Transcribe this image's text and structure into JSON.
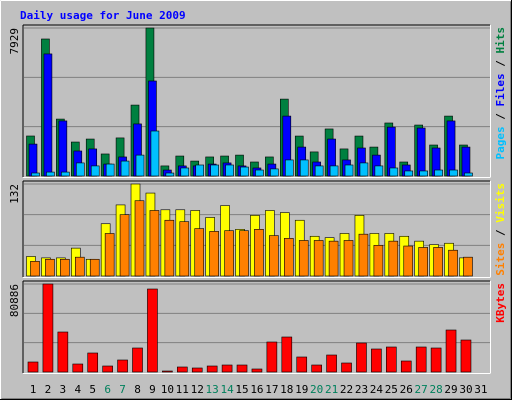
{
  "title": "Daily usage for June 2009",
  "chart_data": [
    {
      "type": "bar",
      "ylim": [
        0,
        7929
      ],
      "yticks": [
        7929
      ],
      "series": [
        {
          "name": "Hits",
          "color": "#008040",
          "values": [
            2143,
            7340,
            3050,
            1820,
            1980,
            1180,
            2040,
            3800,
            7929,
            540,
            1070,
            800,
            1020,
            1070,
            1120,
            750,
            1020,
            4120,
            2140,
            1290,
            2520,
            1450,
            2140,
            1550,
            2840,
            750,
            2730,
            1660,
            3210,
            1660,
            0
          ]
        },
        {
          "name": "Files",
          "color": "#0000ff",
          "values": [
            1710,
            6540,
            2950,
            1340,
            1450,
            640,
            1020,
            2790,
            5090,
            320,
            540,
            540,
            640,
            700,
            540,
            430,
            640,
            3210,
            1550,
            750,
            1980,
            860,
            1500,
            1120,
            2620,
            590,
            2570,
            1500,
            2950,
            1550,
            0
          ]
        },
        {
          "name": "Pages",
          "color": "#00c0ff",
          "values": [
            160,
            210,
            210,
            700,
            540,
            640,
            800,
            1120,
            2410,
            160,
            430,
            590,
            590,
            590,
            480,
            320,
            380,
            860,
            860,
            540,
            540,
            590,
            700,
            540,
            430,
            270,
            270,
            320,
            320,
            160,
            0
          ]
        }
      ]
    },
    {
      "type": "bar",
      "ylim": [
        0,
        132
      ],
      "yticks": [
        132
      ],
      "series": [
        {
          "name": "Visits",
          "color": "#ffff00",
          "values": [
            28,
            26,
            26,
            40,
            24,
            75,
            102,
            132,
            119,
            95,
            95,
            94,
            84,
            101,
            67,
            87,
            94,
            91,
            80,
            57,
            55,
            61,
            87,
            61,
            61,
            57,
            50,
            45,
            47,
            26,
            0
          ]
        },
        {
          "name": "Sites",
          "color": "#ff8000",
          "values": [
            21,
            24,
            24,
            27,
            24,
            61,
            88,
            108,
            94,
            80,
            78,
            68,
            64,
            65,
            65,
            67,
            58,
            54,
            51,
            51,
            50,
            51,
            60,
            44,
            50,
            43,
            41,
            41,
            37,
            27,
            0
          ]
        }
      ]
    },
    {
      "type": "bar",
      "ylim": [
        0,
        80886
      ],
      "yticks": [
        80886
      ],
      "categories": [
        "1",
        "2",
        "3",
        "4",
        "5",
        "6",
        "7",
        "8",
        "9",
        "10",
        "11",
        "12",
        "13",
        "14",
        "15",
        "16",
        "17",
        "18",
        "19",
        "20",
        "21",
        "22",
        "23",
        "24",
        "25",
        "26",
        "27",
        "28",
        "29",
        "30",
        "31"
      ],
      "category_colors": [
        "#000000",
        "#000000",
        "#000000",
        "#000000",
        "#000000",
        "#00805c",
        "#00805c",
        "#000000",
        "#000000",
        "#000000",
        "#000000",
        "#000000",
        "#00805c",
        "#00805c",
        "#000000",
        "#000000",
        "#000000",
        "#000000",
        "#000000",
        "#00805c",
        "#00805c",
        "#000000",
        "#000000",
        "#000000",
        "#000000",
        "#000000",
        "#00805c",
        "#00805c",
        "#000000",
        "#000000",
        "#000000"
      ],
      "series": [
        {
          "name": "KBytes",
          "color": "#ff0000",
          "values": [
            9190,
            80886,
            36760,
            7350,
            17460,
            5510,
            11030,
            22060,
            76280,
            920,
            4600,
            3680,
            5510,
            6430,
            6430,
            2760,
            27570,
            32170,
            13790,
            6430,
            15620,
            8270,
            26650,
            21140,
            22980,
            10110,
            22980,
            22060,
            38600,
            29410,
            0
          ]
        }
      ]
    }
  ]
}
